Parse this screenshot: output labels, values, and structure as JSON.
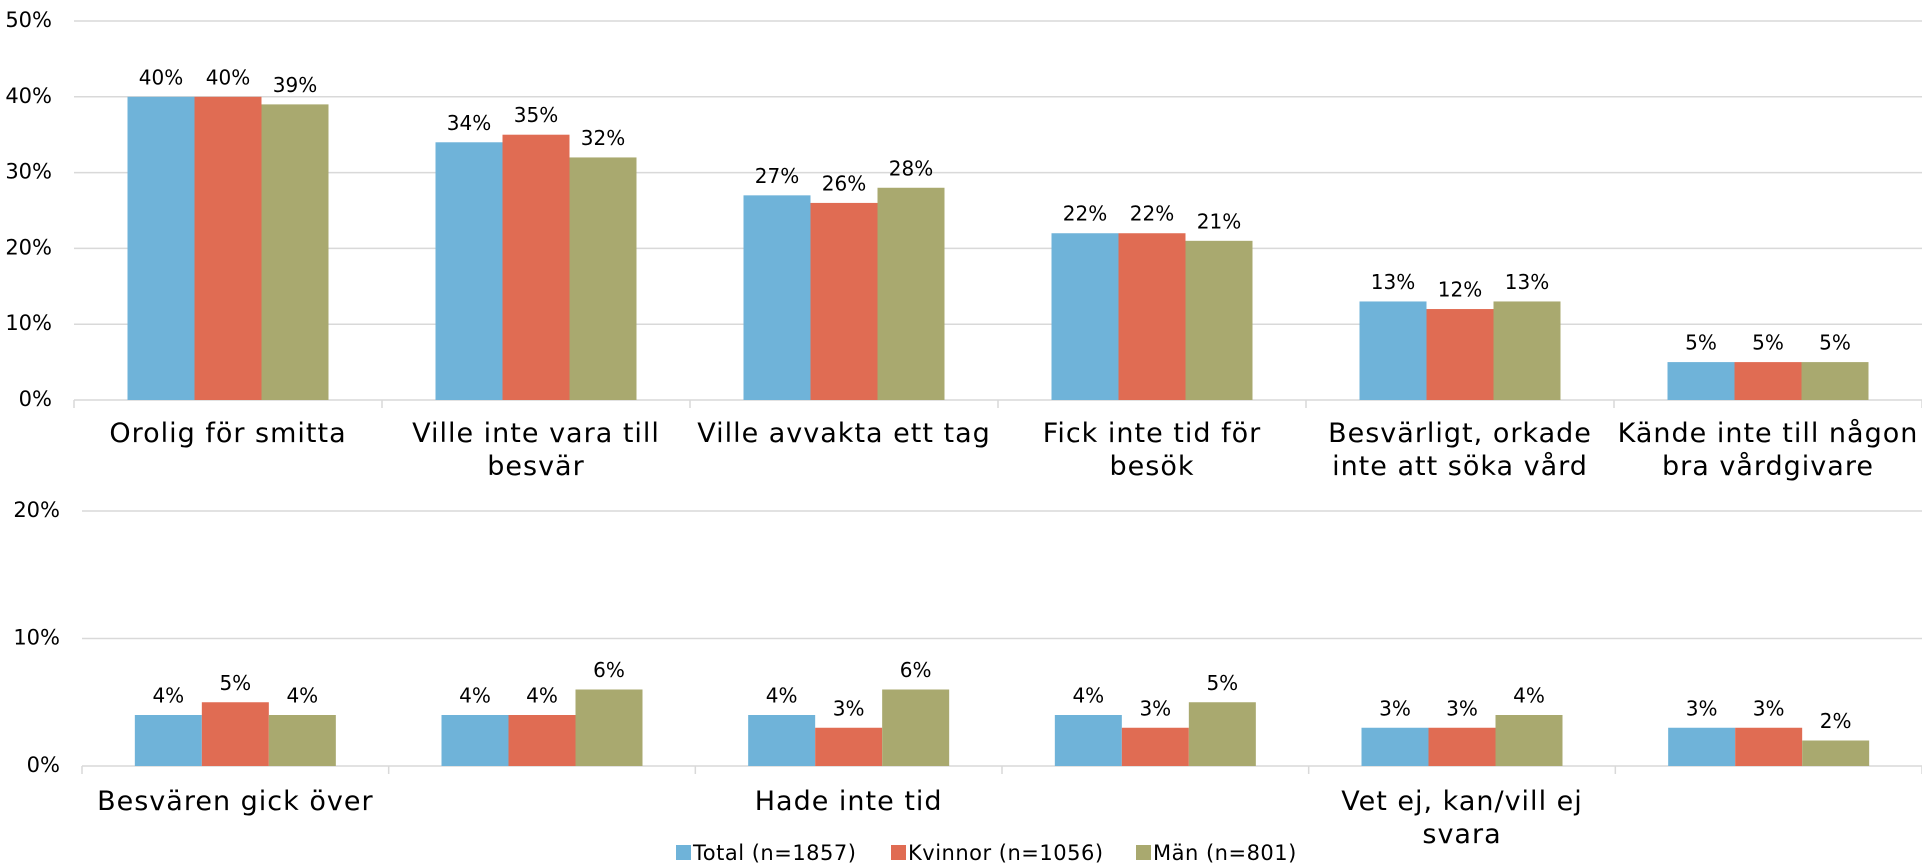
{
  "chart_data": [
    {
      "type": "bar",
      "categories": [
        "Orolig för smitta",
        "Ville inte vara till besvär",
        "Ville avvakta ett tag",
        "Fick inte tid för besök",
        "Besvärligt, orkade inte att söka vård",
        "Kände inte till någon bra vårdgivare"
      ],
      "series": [
        {
          "name": "Total (n=1857)",
          "color": "#6fb3d9",
          "values": [
            40,
            34,
            27,
            22,
            13,
            5
          ],
          "value_labels": [
            "40%",
            "34%",
            "27%",
            "22%",
            "13%",
            "5%"
          ]
        },
        {
          "name": "Kvinnor (n=1056)",
          "color": "#e06c53",
          "values": [
            40,
            35,
            26,
            22,
            12,
            5
          ],
          "value_labels": [
            "40%",
            "35%",
            "26%",
            "22%",
            "12%",
            "5%"
          ]
        },
        {
          "name": "Män (n=801)",
          "color": "#a9a96f",
          "values": [
            39,
            32,
            28,
            21,
            13,
            5
          ],
          "value_labels": [
            "39%",
            "32%",
            "28%",
            "21%",
            "13%",
            "5%"
          ]
        }
      ],
      "ylim": [
        0,
        50
      ],
      "yticks": [
        {
          "value": 0,
          "label": "0%"
        },
        {
          "value": 10,
          "label": "10%"
        },
        {
          "value": 20,
          "label": "20%"
        },
        {
          "value": 30,
          "label": "30%"
        },
        {
          "value": 40,
          "label": "40%"
        },
        {
          "value": 50,
          "label": "50%"
        }
      ],
      "grid": true
    },
    {
      "type": "bar",
      "categories": [
        "Besvären gick över",
        null,
        "Hade inte tid",
        null,
        "Vet ej, kan/vill ej svara",
        null
      ],
      "series": [
        {
          "name": "Total (n=1857)",
          "color": "#6fb3d9",
          "values": [
            4,
            4,
            4,
            4,
            3,
            3
          ],
          "value_labels": [
            "4%",
            "4%",
            "4%",
            "4%",
            "3%",
            "3%"
          ]
        },
        {
          "name": "Kvinnor (n=1056)",
          "color": "#e06c53",
          "values": [
            5,
            4,
            3,
            3,
            3,
            3
          ],
          "value_labels": [
            "5%",
            "4%",
            "3%",
            "3%",
            "3%",
            "3%"
          ]
        },
        {
          "name": "Män (n=801)",
          "color": "#a9a96f",
          "values": [
            4,
            6,
            6,
            5,
            4,
            2
          ],
          "value_labels": [
            "4%",
            "6%",
            "6%",
            "5%",
            "4%",
            "2%"
          ]
        }
      ],
      "ylim": [
        0,
        20
      ],
      "yticks": [
        {
          "value": 0,
          "label": "0%"
        },
        {
          "value": 10,
          "label": "10%"
        },
        {
          "value": 20,
          "label": "20%"
        }
      ],
      "grid": true,
      "legend": "bottom"
    }
  ]
}
